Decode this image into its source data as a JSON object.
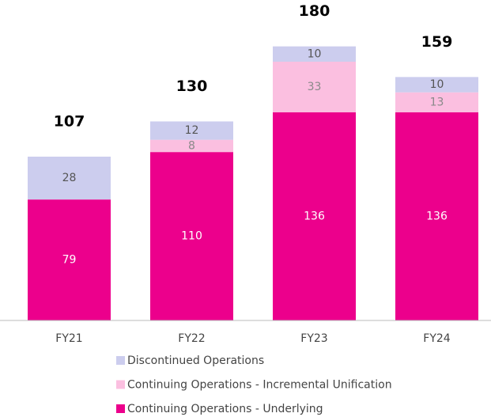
{
  "chart_data": {
    "type": "stacked_bar",
    "categories": [
      "FY21",
      "FY22",
      "FY23",
      "FY24"
    ],
    "series": [
      {
        "name": "Continuing Operations - Underlying",
        "color": "#ec008c",
        "label_color": "#ffffff",
        "values": [
          79,
          110,
          136,
          136
        ]
      },
      {
        "name": "Continuing Operations - Incremental Unification",
        "color": "#fbbfe0",
        "label_color": "#8a8a8a",
        "values": [
          null,
          8,
          33,
          13
        ]
      },
      {
        "name": "Discontinued Operations",
        "color": "#cccdee",
        "label_color": "#555555",
        "values": [
          28,
          12,
          10,
          10
        ]
      }
    ],
    "totals": [
      107,
      130,
      180,
      159
    ],
    "ylim": [
      0,
      200
    ]
  }
}
